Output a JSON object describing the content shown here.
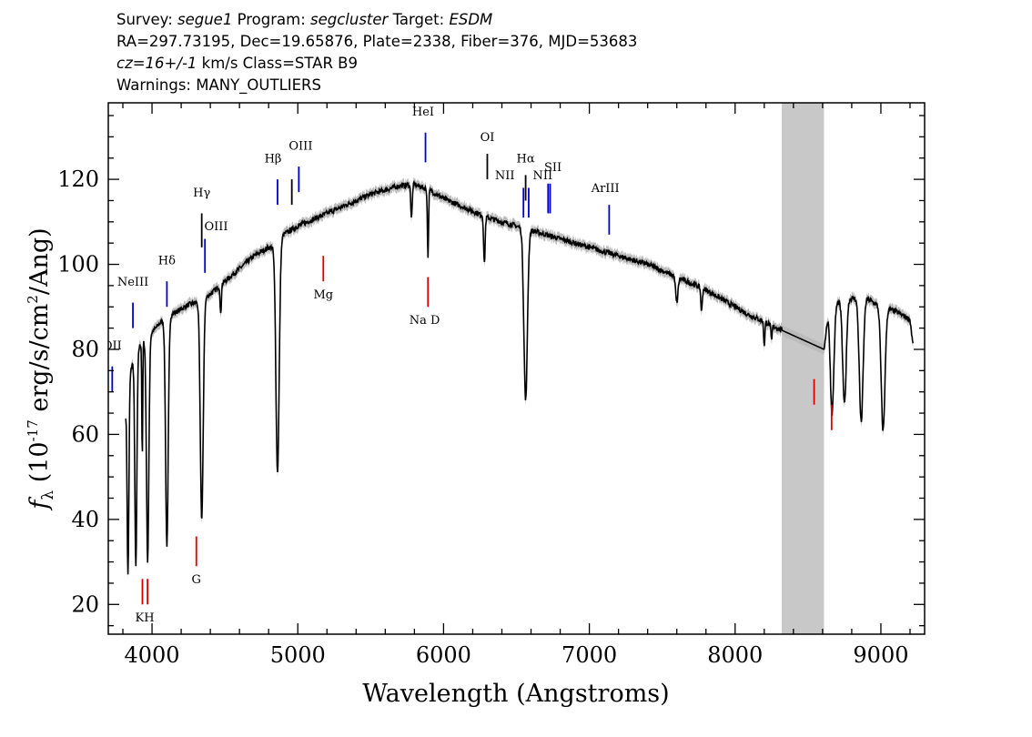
{
  "header": {
    "line1": [
      {
        "label": "Survey: ",
        "value": "segue1"
      },
      {
        "label": " Program: ",
        "value": "segcluster"
      },
      {
        "label": " Target: ",
        "value": "ESDM"
      }
    ],
    "line2": "RA=297.73195, Dec=19.65876, Plate=2338, Fiber=376, MJD=53683",
    "line3": {
      "redshift": "cz=16+/-1",
      "rest": " km/s Class=STAR B9"
    },
    "line4": "Warnings: MANY_OUTLIERS"
  },
  "chart_data": {
    "type": "line",
    "xlabel": "Wavelength (Angstroms)",
    "ylabel_parts": [
      "f",
      "λ",
      " (10",
      "-17",
      " erg/s/cm",
      "2",
      "/Ang)"
    ],
    "xlim": [
      3700,
      9300
    ],
    "ylim": [
      13,
      138
    ],
    "xticks": [
      4000,
      5000,
      6000,
      7000,
      8000,
      9000
    ],
    "yticks": [
      20,
      40,
      60,
      80,
      100,
      120
    ],
    "colors": {
      "spectrum": "#000000",
      "error_band": "#bbbbbb",
      "masked_region": "#c8c8c8",
      "emission": "#0000cc",
      "absorption": "#dd0000",
      "other": "#000000"
    },
    "masked_region": [
      8320,
      8610
    ],
    "continuum": [
      [
        3820,
        66
      ],
      [
        3840,
        72
      ],
      [
        3860,
        76
      ],
      [
        3880,
        78
      ],
      [
        3900,
        80
      ],
      [
        3920,
        81
      ],
      [
        3950,
        82
      ],
      [
        4000,
        84
      ],
      [
        4050,
        86
      ],
      [
        4080,
        87
      ],
      [
        4150,
        88.5
      ],
      [
        4200,
        89.5
      ],
      [
        4250,
        90.5
      ],
      [
        4300,
        91
      ],
      [
        4340,
        91.5
      ],
      [
        4400,
        93
      ],
      [
        4500,
        96
      ],
      [
        4600,
        99
      ],
      [
        4700,
        102
      ],
      [
        4800,
        104
      ],
      [
        4860,
        104
      ],
      [
        4900,
        107
      ],
      [
        5000,
        109
      ],
      [
        5100,
        110.5
      ],
      [
        5200,
        112
      ],
      [
        5300,
        113.5
      ],
      [
        5400,
        115
      ],
      [
        5500,
        116.5
      ],
      [
        5600,
        117.5
      ],
      [
        5700,
        118.5
      ],
      [
        5800,
        118.8
      ],
      [
        5900,
        117.5
      ],
      [
        6000,
        115.5
      ],
      [
        6100,
        114
      ],
      [
        6200,
        112.5
      ],
      [
        6300,
        111
      ],
      [
        6400,
        110
      ],
      [
        6500,
        109
      ],
      [
        6600,
        108
      ],
      [
        6700,
        107
      ],
      [
        6800,
        106
      ],
      [
        6900,
        105
      ],
      [
        7000,
        104
      ],
      [
        7100,
        103
      ],
      [
        7200,
        102
      ],
      [
        7300,
        101
      ],
      [
        7400,
        100
      ],
      [
        7500,
        98.5
      ],
      [
        7600,
        97
      ],
      [
        7700,
        95.5
      ],
      [
        7800,
        94
      ],
      [
        7900,
        92
      ],
      [
        8000,
        90
      ],
      [
        8100,
        88
      ],
      [
        8200,
        86.5
      ],
      [
        8320,
        84.5
      ],
      [
        8610,
        80
      ],
      [
        8640,
        89
      ],
      [
        8700,
        91
      ],
      [
        8800,
        92
      ],
      [
        8900,
        92
      ],
      [
        9000,
        90
      ],
      [
        9100,
        89
      ],
      [
        9200,
        87
      ],
      [
        9220,
        81
      ]
    ],
    "absorption_dips": [
      {
        "center": 3835,
        "min": 27,
        "width": 6
      },
      {
        "center": 3889,
        "min": 29,
        "width": 7
      },
      {
        "center": 3933,
        "min": 54,
        "width": 3
      },
      {
        "center": 3970,
        "min": 30,
        "width": 8
      },
      {
        "center": 4102,
        "min": 34,
        "width": 9
      },
      {
        "center": 4341,
        "min": 40,
        "width": 10
      },
      {
        "center": 4471,
        "min": 88,
        "width": 4
      },
      {
        "center": 4861,
        "min": 51,
        "width": 11
      },
      {
        "center": 5780,
        "min": 111,
        "width": 5
      },
      {
        "center": 5893,
        "min": 102,
        "width": 4
      },
      {
        "center": 6280,
        "min": 100,
        "width": 5
      },
      {
        "center": 6563,
        "min": 68,
        "width": 12
      },
      {
        "center": 7600,
        "min": 91,
        "width": 8
      },
      {
        "center": 7770,
        "min": 89,
        "width": 5
      },
      {
        "center": 8200,
        "min": 81,
        "width": 4
      },
      {
        "center": 8250,
        "min": 82,
        "width": 4
      },
      {
        "center": 8665,
        "min": 65,
        "width": 12
      },
      {
        "center": 8750,
        "min": 67,
        "width": 12
      },
      {
        "center": 8865,
        "min": 63,
        "width": 13
      },
      {
        "center": 9015,
        "min": 61,
        "width": 13
      }
    ],
    "line_markers": [
      {
        "label": "OII",
        "x": 3727,
        "y1": 70,
        "y2": 76,
        "color": "emission",
        "lx": 3727,
        "ly": 80
      },
      {
        "label": "NeIII",
        "x": 3869,
        "y1": 85,
        "y2": 91,
        "color": "emission",
        "lx": 3869,
        "ly": 95
      },
      {
        "label": "Hδ",
        "x": 4102,
        "y1": 90,
        "y2": 96,
        "color": "emission",
        "lx": 4102,
        "ly": 100
      },
      {
        "label": "Hγ",
        "x": 4341,
        "y1": 104,
        "y2": 112,
        "color": "other",
        "lx": 4341,
        "ly": 116
      },
      {
        "label": "OIII",
        "x": 4363,
        "y1": 98,
        "y2": 106,
        "color": "emission",
        "lx": 4440,
        "ly": 108
      },
      {
        "label": "Hβ",
        "x": 4861,
        "y1": 114,
        "y2": 120,
        "color": "emission",
        "lx": 4830,
        "ly": 124
      },
      {
        "label": "",
        "x": 4959,
        "y1": 114,
        "y2": 120,
        "color": "other",
        "lx": 4959,
        "ly": 124
      },
      {
        "label": "OIII",
        "x": 5007,
        "y1": 117,
        "y2": 123,
        "color": "emission",
        "lx": 5020,
        "ly": 127
      },
      {
        "label": "HeI",
        "x": 5876,
        "y1": 124,
        "y2": 131,
        "color": "emission",
        "lx": 5860,
        "ly": 135
      },
      {
        "label": "OI",
        "x": 6300,
        "y1": 120,
        "y2": 126,
        "color": "other",
        "lx": 6300,
        "ly": 129
      },
      {
        "label": "NII",
        "x": 6548,
        "y1": 111,
        "y2": 118,
        "color": "emission",
        "lx": 6420,
        "ly": 120
      },
      {
        "label": "Hα",
        "x": 6563,
        "y1": 115,
        "y2": 121,
        "color": "other",
        "lx": 6563,
        "ly": 124
      },
      {
        "label": "",
        "x": 6584,
        "y1": 111,
        "y2": 118,
        "color": "emission",
        "lx": 6584,
        "ly": 120
      },
      {
        "label": "NII",
        "x": 6717,
        "y1": 112,
        "y2": 119,
        "color": "emission",
        "lx": 6680,
        "ly": 120
      },
      {
        "label": "SII",
        "x": 6731,
        "y1": 112,
        "y2": 119,
        "color": "emission",
        "lx": 6750,
        "ly": 122
      },
      {
        "label": "ArIII",
        "x": 7136,
        "y1": 107,
        "y2": 114,
        "color": "emission",
        "lx": 7110,
        "ly": 117
      },
      {
        "label": "Mg",
        "x": 5175,
        "y1": 96,
        "y2": 102,
        "color": "absorption",
        "lx": 5175,
        "ly": 92
      },
      {
        "label": "Na  D",
        "x": 5893,
        "y1": 90,
        "y2": 97,
        "color": "absorption",
        "lx": 5870,
        "ly": 86
      },
      {
        "label": "G",
        "x": 4304,
        "y1": 29,
        "y2": 36,
        "color": "absorption",
        "lx": 4304,
        "ly": 25
      },
      {
        "label": "",
        "x": 3934,
        "y1": 20,
        "y2": 26,
        "color": "absorption",
        "lx": 3934,
        "ly": 20
      },
      {
        "label": "",
        "x": 3969,
        "y1": 20,
        "y2": 26,
        "color": "absorption",
        "lx": 3969,
        "ly": 20
      },
      {
        "label": "KH",
        "x": 3950,
        "y1": 0,
        "y2": 0,
        "color": "none",
        "lx": 3950,
        "ly": 16
      },
      {
        "label": "",
        "x": 8542,
        "y1": 67,
        "y2": 73,
        "color": "absorption",
        "lx": 8542,
        "ly": 67
      },
      {
        "label": "",
        "x": 8662,
        "y1": 61,
        "y2": 67,
        "color": "absorption",
        "lx": 8662,
        "ly": 61
      }
    ]
  }
}
